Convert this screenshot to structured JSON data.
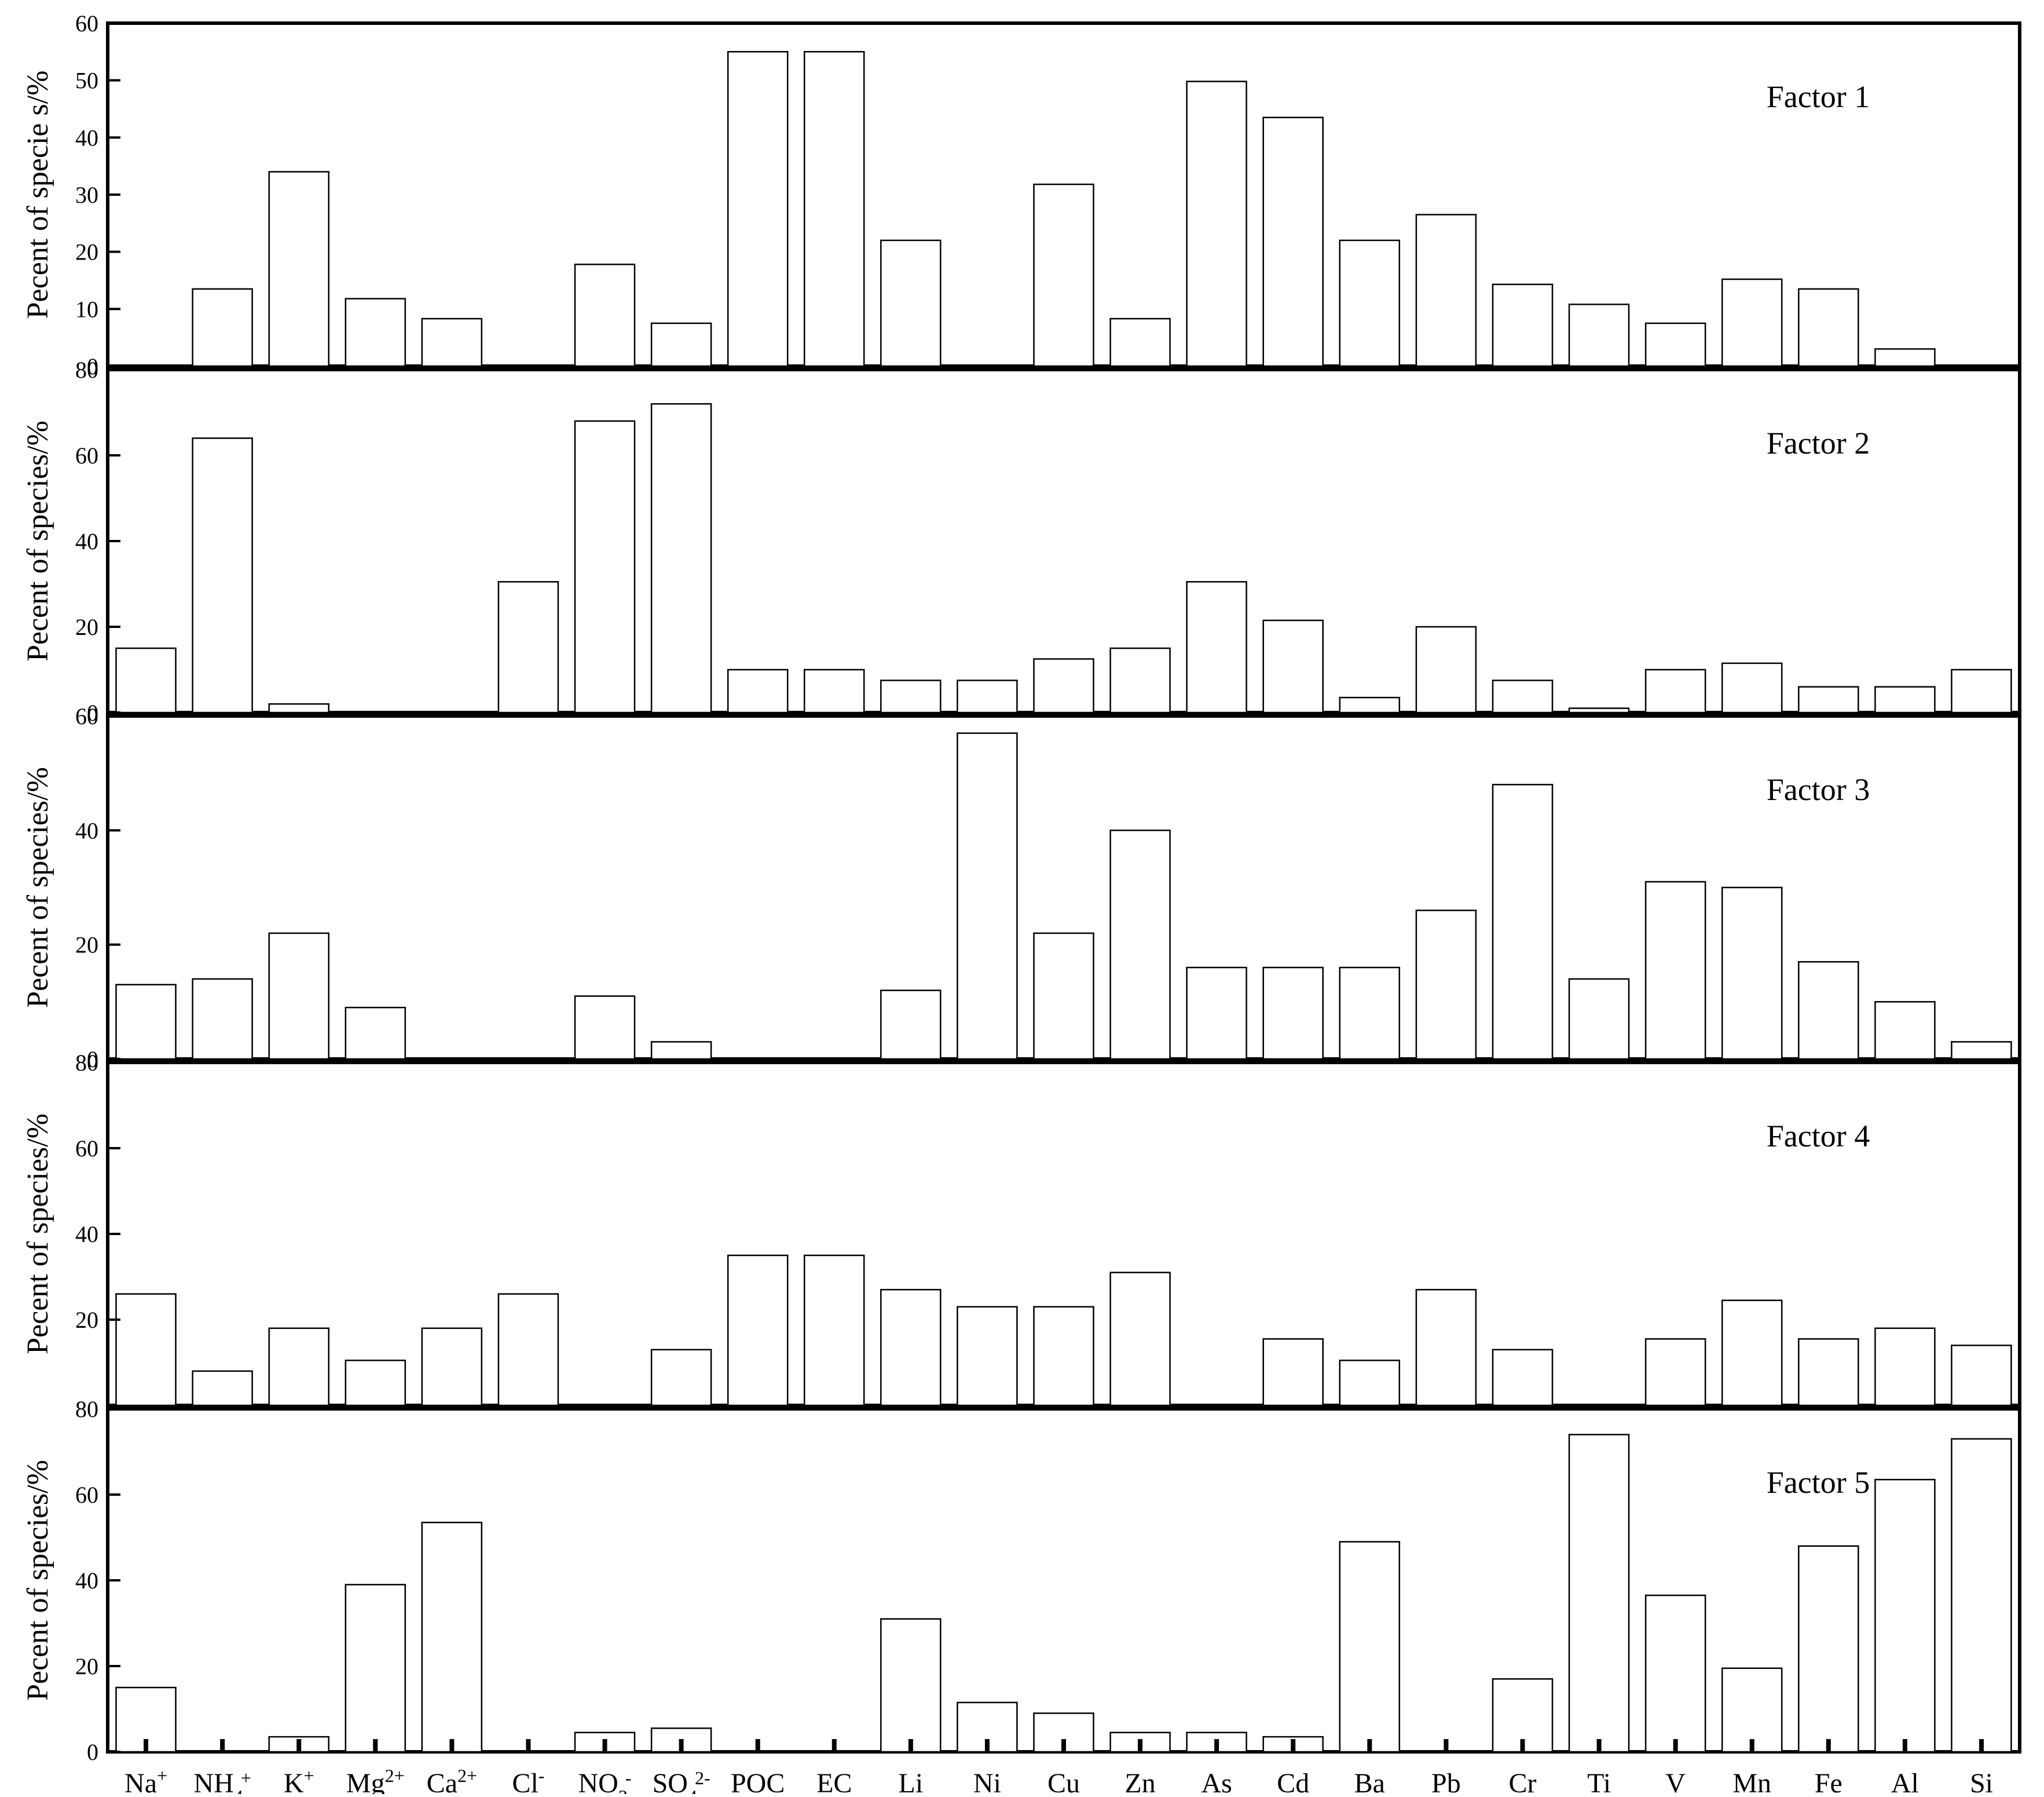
{
  "chart_data": {
    "type": "bar",
    "categories": [
      {
        "base": "Na",
        "sup": "+",
        "sub": ""
      },
      {
        "base": "NH",
        "sub": "4",
        "sup": "+"
      },
      {
        "base": "K",
        "sup": "+",
        "sub": ""
      },
      {
        "base": "Mg",
        "sup": "2+",
        "sub": ""
      },
      {
        "base": "Ca",
        "sup": "2+",
        "sub": ""
      },
      {
        "base": "Cl",
        "sup": "-",
        "sub": ""
      },
      {
        "base": "NO",
        "sub": "3",
        "sup": "-"
      },
      {
        "base": "SO",
        "sub": "4",
        "sup": "2-"
      },
      {
        "base": "POC",
        "sub": "",
        "sup": ""
      },
      {
        "base": "EC",
        "sub": "",
        "sup": ""
      },
      {
        "base": "Li",
        "sub": "",
        "sup": ""
      },
      {
        "base": "Ni",
        "sub": "",
        "sup": ""
      },
      {
        "base": "Cu",
        "sub": "",
        "sup": ""
      },
      {
        "base": "Zn",
        "sub": "",
        "sup": ""
      },
      {
        "base": "As",
        "sub": "",
        "sup": ""
      },
      {
        "base": "Cd",
        "sub": "",
        "sup": ""
      },
      {
        "base": "Ba",
        "sub": "",
        "sup": ""
      },
      {
        "base": "Pb",
        "sub": "",
        "sup": ""
      },
      {
        "base": "Cr",
        "sub": "",
        "sup": ""
      },
      {
        "base": "Ti",
        "sub": "",
        "sup": ""
      },
      {
        "base": "V",
        "sub": "",
        "sup": ""
      },
      {
        "base": "Mn",
        "sub": "",
        "sup": ""
      },
      {
        "base": "Fe",
        "sub": "",
        "sup": ""
      },
      {
        "base": "Al",
        "sub": "",
        "sup": ""
      },
      {
        "base": "Si",
        "sub": "",
        "sup": ""
      }
    ],
    "panels": [
      {
        "name": "Factor 1",
        "ylabel": "Pecent of specie s/%",
        "ylim": [
          0,
          60
        ],
        "yticks": [
          0,
          10,
          20,
          30,
          40,
          50,
          60
        ],
        "values": [
          0,
          13.5,
          34,
          11.8,
          8.3,
          0,
          17.8,
          7.5,
          55,
          55,
          22,
          0,
          31.8,
          8.3,
          49.8,
          43.5,
          22,
          26.5,
          14.3,
          10.8,
          7.5,
          15.2,
          13.5,
          3,
          0
        ]
      },
      {
        "name": "Factor 2",
        "ylabel": "Pecent of species/%",
        "ylim": [
          0,
          80
        ],
        "yticks": [
          0,
          20,
          40,
          60,
          80
        ],
        "values": [
          15,
          64,
          2,
          0,
          0,
          30.5,
          68,
          72,
          10,
          10,
          7.5,
          7.5,
          12.5,
          15,
          30.5,
          21.5,
          3.5,
          20,
          7.5,
          1,
          10,
          11.5,
          6,
          6,
          10
        ]
      },
      {
        "name": "Factor 3",
        "ylabel": "Pecent of species/%",
        "ylim": [
          0,
          60
        ],
        "yticks": [
          0,
          20,
          40,
          60
        ],
        "values": [
          13,
          14,
          22,
          9,
          0,
          0,
          11,
          3,
          0,
          0,
          12,
          57,
          22,
          40,
          16,
          16,
          16,
          26,
          48,
          14,
          31,
          30,
          17,
          10,
          3
        ]
      },
      {
        "name": "Factor 4",
        "ylabel": "Pecent of species/%",
        "ylim": [
          0,
          80
        ],
        "yticks": [
          20,
          40,
          60,
          80
        ],
        "values": [
          26,
          8,
          18,
          10.5,
          18,
          26,
          0,
          13,
          35,
          35,
          27,
          23,
          23,
          31,
          0,
          15.5,
          10.5,
          27,
          13,
          0,
          15.5,
          24.5,
          15.5,
          18,
          14
        ]
      },
      {
        "name": "Factor 5",
        "ylabel": "Pecent of species/%",
        "ylim": [
          0,
          80
        ],
        "yticks": [
          0,
          20,
          40,
          60,
          80
        ],
        "values": [
          15,
          0,
          3.5,
          39,
          53.5,
          0,
          4.5,
          5.5,
          0,
          0,
          31,
          11.5,
          9,
          4.5,
          4.5,
          3.5,
          49,
          0,
          17,
          74,
          36.5,
          19.5,
          48,
          63.5,
          73
        ]
      }
    ],
    "grid": false,
    "legend": "none"
  }
}
